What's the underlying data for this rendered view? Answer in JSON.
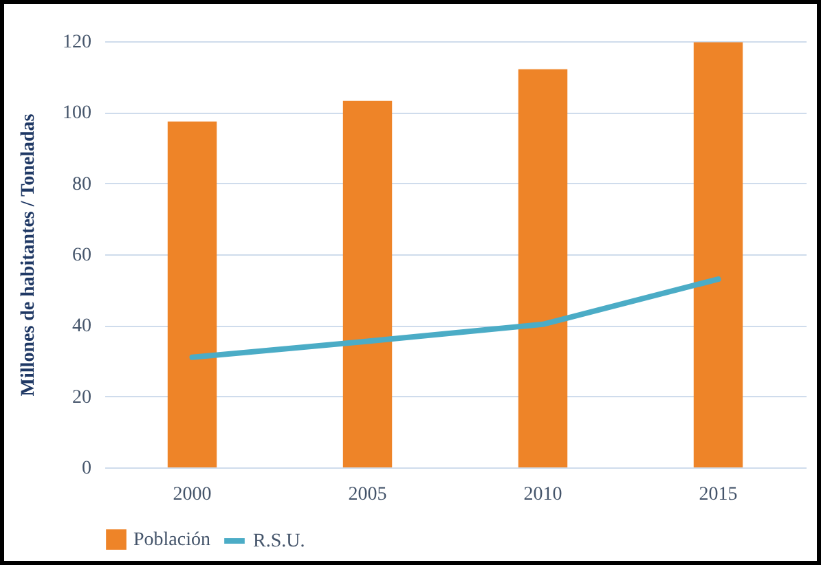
{
  "chart_data": {
    "type": "bar",
    "ylabel": "Millones de habitantes / Toneladas",
    "categories": [
      "2000",
      "2005",
      "2010",
      "2015"
    ],
    "series": [
      {
        "name": "Población",
        "color": "#ee8428",
        "values": [
          97.4,
          103.2,
          112.1,
          119.7
        ]
      },
      {
        "name": "R.S.U.",
        "type": "line",
        "color": "#4bacc6",
        "values": [
          31,
          35.5,
          40.3,
          53
        ]
      }
    ],
    "ylim": [
      0,
      120
    ],
    "yticks": [
      0,
      20,
      40,
      60,
      80,
      100,
      120
    ],
    "grid": "y",
    "legend": "bottom",
    "marker": "none"
  }
}
